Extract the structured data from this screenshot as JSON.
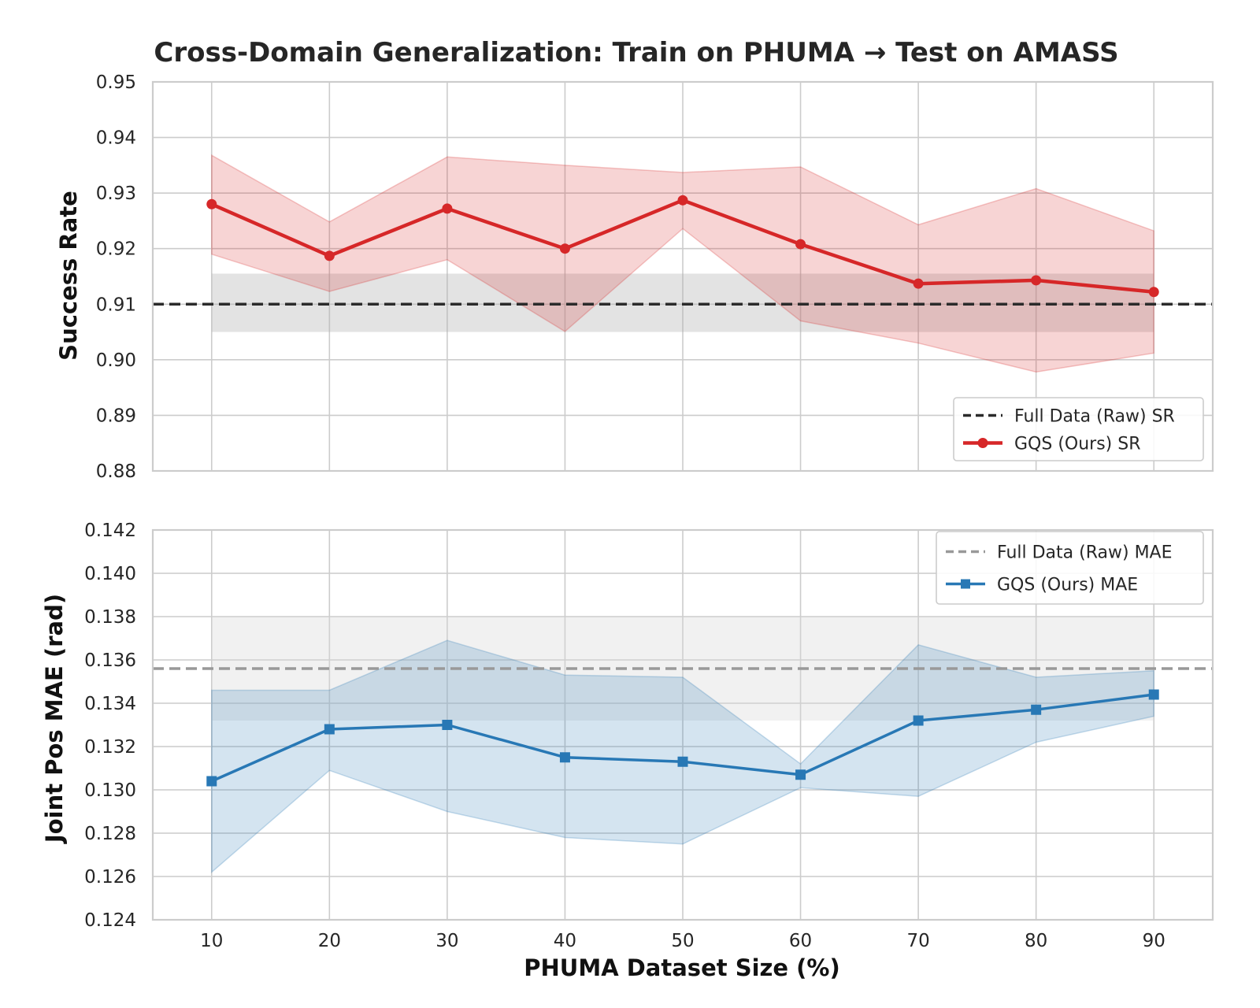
{
  "chart_data": [
    {
      "type": "line",
      "title": "Cross-Domain Generalization: Train on PHUMA → Test on AMASS",
      "ylabel": "Success Rate",
      "xlabel": "",
      "x": [
        10,
        20,
        30,
        40,
        50,
        60,
        70,
        80,
        90
      ],
      "x_ticks": [
        "10",
        "20",
        "30",
        "40",
        "50",
        "60",
        "70",
        "80",
        "90"
      ],
      "xlim": [
        5,
        95
      ],
      "ylim": [
        0.88,
        0.95
      ],
      "y_ticks": [
        "0.88",
        "0.89",
        "0.90",
        "0.91",
        "0.92",
        "0.93",
        "0.94",
        "0.95"
      ],
      "grid": true,
      "legend_position": "lower-right",
      "baseline": {
        "name": "Full Data (Raw) SR",
        "value": 0.91,
        "band": [
          0.905,
          0.9155
        ],
        "color": "#2b2b2b",
        "band_color": "#b0b0b0"
      },
      "series": [
        {
          "name": "GQS (Ours) SR",
          "values": [
            0.928,
            0.9187,
            0.9272,
            0.92,
            0.9287,
            0.9208,
            0.9137,
            0.9143,
            0.9122
          ],
          "upper": [
            0.9368,
            0.9248,
            0.9365,
            0.935,
            0.9337,
            0.9347,
            0.9243,
            0.9308,
            0.9232
          ],
          "lower": [
            0.919,
            0.9123,
            0.918,
            0.9051,
            0.9236,
            0.907,
            0.903,
            0.8978,
            0.9012
          ],
          "color": "#d62728",
          "marker": "circle"
        }
      ]
    },
    {
      "type": "line",
      "title": "",
      "ylabel": "Joint Pos MAE (rad)",
      "xlabel": "PHUMA Dataset Size (%)",
      "x": [
        10,
        20,
        30,
        40,
        50,
        60,
        70,
        80,
        90
      ],
      "x_ticks": [
        "10",
        "20",
        "30",
        "40",
        "50",
        "60",
        "70",
        "80",
        "90"
      ],
      "xlim": [
        5,
        95
      ],
      "ylim": [
        0.124,
        0.142
      ],
      "y_ticks": [
        "0.124",
        "0.126",
        "0.128",
        "0.130",
        "0.132",
        "0.134",
        "0.136",
        "0.138",
        "0.140",
        "0.142"
      ],
      "grid": true,
      "legend_position": "upper-right",
      "baseline": {
        "name": "Full Data (Raw) MAE",
        "value": 0.1356,
        "band": [
          0.1332,
          0.138
        ],
        "color": "#999999",
        "band_color": "#d8d8d8"
      },
      "series": [
        {
          "name": "GQS (Ours) MAE",
          "values": [
            0.1304,
            0.1328,
            0.133,
            0.1315,
            0.1313,
            0.1307,
            0.1332,
            0.1337,
            0.1344
          ],
          "upper": [
            0.1346,
            0.1346,
            0.1369,
            0.1353,
            0.1352,
            0.1312,
            0.1367,
            0.1352,
            0.1355
          ],
          "lower": [
            0.1262,
            0.1309,
            0.129,
            0.1278,
            0.1275,
            0.1301,
            0.1297,
            0.1322,
            0.1334
          ],
          "color": "#2878b5",
          "marker": "square"
        }
      ]
    }
  ]
}
